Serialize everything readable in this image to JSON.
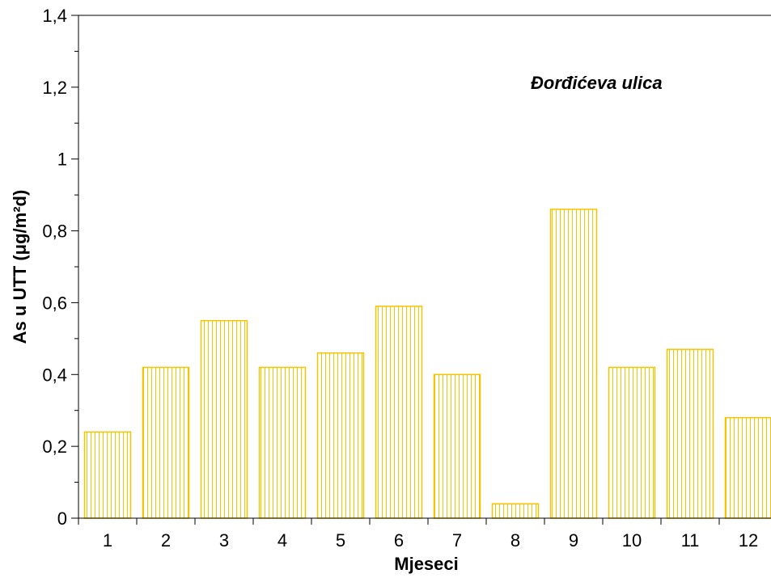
{
  "chart_data": {
    "type": "bar",
    "categories": [
      "1",
      "2",
      "3",
      "4",
      "5",
      "6",
      "7",
      "8",
      "9",
      "10",
      "11",
      "12"
    ],
    "values": [
      0.24,
      0.42,
      0.55,
      0.42,
      0.46,
      0.59,
      0.4,
      0.04,
      0.86,
      0.42,
      0.47,
      0.28
    ],
    "title": "",
    "annotation": "Đorđićeva ulica",
    "xlabel": "Mjeseci",
    "ylabel": "As u UTT (μg/m²d)",
    "ylim": [
      0,
      1.4
    ],
    "yticks": [
      "0",
      "0,2",
      "0,4",
      "0,6",
      "0,8",
      "1",
      "1,2",
      "1,4"
    ],
    "grid": false,
    "legend": "none",
    "bar_color": "#f5c400",
    "bar_fill": "vertical-hatch"
  }
}
